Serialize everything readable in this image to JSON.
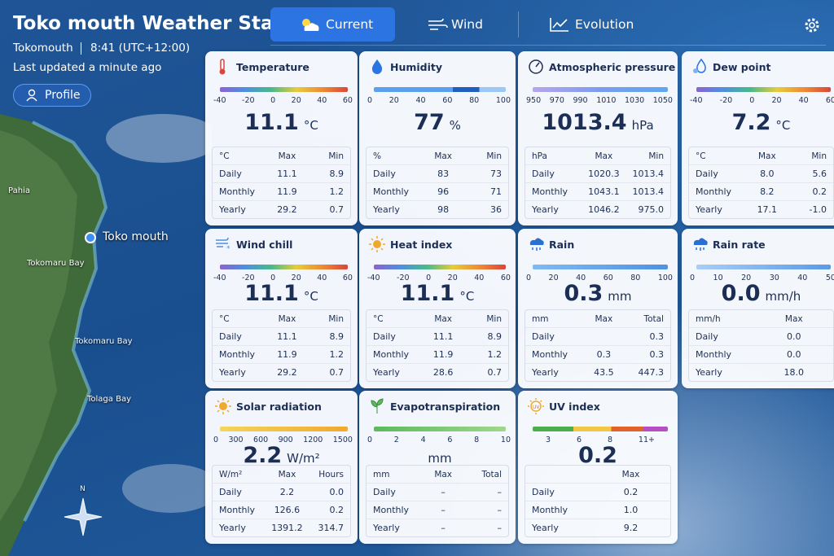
{
  "header": {
    "title": "Toko mouth Weather Sta",
    "location": "Tokomouth",
    "time": "8:41 (UTC+12:00)",
    "updated": "Last updated a minute ago",
    "profile": "Profile"
  },
  "tabs": [
    "Current",
    "Wind",
    "Evolution"
  ],
  "map": {
    "labels": [
      "Pahia",
      "Toko mouth",
      "Tokomaru Bay",
      "Tokomaru Bay",
      "Tolaga Bay"
    ],
    "north": "N"
  },
  "cards": [
    {
      "title": "Temperature",
      "scale": [
        "-40",
        "-20",
        "0",
        "20",
        "40",
        "60"
      ],
      "value": "11.1",
      "unit": "°C",
      "header": [
        "°C",
        "Max",
        "Min"
      ],
      "rows": [
        [
          "Daily",
          "11.1",
          "8.9"
        ],
        [
          "Monthly",
          "11.9",
          "1.2"
        ],
        [
          "Yearly",
          "29.2",
          "0.7"
        ]
      ]
    },
    {
      "title": "Humidity",
      "scale": [
        "0",
        "20",
        "40",
        "60",
        "80",
        "100"
      ],
      "value": "77",
      "unit": "%",
      "header": [
        "%",
        "Max",
        "Min"
      ],
      "rows": [
        [
          "Daily",
          "83",
          "73"
        ],
        [
          "Monthly",
          "96",
          "71"
        ],
        [
          "Yearly",
          "98",
          "36"
        ]
      ]
    },
    {
      "title": "Atmospheric pressure",
      "scale": [
        "950",
        "970",
        "990",
        "1010",
        "1030",
        "1050"
      ],
      "value": "1013.4",
      "unit": "hPa",
      "header": [
        "hPa",
        "Max",
        "Min"
      ],
      "rows": [
        [
          "Daily",
          "1020.3",
          "1013.4"
        ],
        [
          "Monthly",
          "1043.1",
          "1013.4"
        ],
        [
          "Yearly",
          "1046.2",
          "975.0"
        ]
      ]
    },
    {
      "title": "Dew point",
      "scale": [
        "-40",
        "-20",
        "0",
        "20",
        "40",
        "60"
      ],
      "value": "7.2",
      "unit": "°C",
      "header": [
        "°C",
        "Max",
        "Min"
      ],
      "rows": [
        [
          "Daily",
          "8.0",
          "5.6"
        ],
        [
          "Monthly",
          "8.2",
          "0.2"
        ],
        [
          "Yearly",
          "17.1",
          "-1.0"
        ]
      ]
    },
    {
      "title": "Wind chill",
      "scale": [
        "-40",
        "-20",
        "0",
        "20",
        "40",
        "60"
      ],
      "value": "11.1",
      "unit": "°C",
      "header": [
        "°C",
        "Max",
        "Min"
      ],
      "rows": [
        [
          "Daily",
          "11.1",
          "8.9"
        ],
        [
          "Monthly",
          "11.9",
          "1.2"
        ],
        [
          "Yearly",
          "29.2",
          "0.7"
        ]
      ]
    },
    {
      "title": "Heat index",
      "scale": [
        "-40",
        "-20",
        "0",
        "20",
        "40",
        "60"
      ],
      "value": "11.1",
      "unit": "°C",
      "header": [
        "°C",
        "Max",
        "Min"
      ],
      "rows": [
        [
          "Daily",
          "11.1",
          "8.9"
        ],
        [
          "Monthly",
          "11.9",
          "1.2"
        ],
        [
          "Yearly",
          "28.6",
          "0.7"
        ]
      ]
    },
    {
      "title": "Rain",
      "scale": [
        "0",
        "20",
        "40",
        "60",
        "80",
        "100"
      ],
      "value": "0.3",
      "unit": "mm",
      "header": [
        "mm",
        "Max",
        "Total"
      ],
      "rows": [
        [
          "Daily",
          null,
          "0.3"
        ],
        [
          "Monthly",
          "0.3",
          "0.3"
        ],
        [
          "Yearly",
          "43.5",
          "447.3"
        ]
      ]
    },
    {
      "title": "Rain rate",
      "scale": [
        "0",
        "10",
        "20",
        "30",
        "40",
        "50"
      ],
      "value": "0.0",
      "unit": "mm/h",
      "header": [
        "mm/h",
        "Max"
      ],
      "rows": [
        [
          "Daily",
          "0.0"
        ],
        [
          "Monthly",
          "0.0"
        ],
        [
          "Yearly",
          "18.0"
        ]
      ]
    },
    {
      "title": "Solar radiation",
      "scale": [
        "0",
        "300",
        "600",
        "900",
        "1200",
        "1500"
      ],
      "value": "2.2",
      "unit": "W/m²",
      "header": [
        "W/m²",
        "Max",
        "Hours"
      ],
      "rows": [
        [
          "Daily",
          "2.2",
          "0.0"
        ],
        [
          "Monthly",
          "126.6",
          "0.2"
        ],
        [
          "Yearly",
          "1391.2",
          "314.7"
        ]
      ]
    },
    {
      "title": "Evapotranspiration",
      "scale": [
        "0",
        "2",
        "4",
        "6",
        "8",
        "10"
      ],
      "unit": "mm",
      "header": [
        "mm",
        "Max",
        "Total"
      ],
      "rows": [
        [
          "Daily",
          "–",
          "–"
        ],
        [
          "Monthly",
          "–",
          "–"
        ],
        [
          "Yearly",
          "–",
          "–"
        ]
      ]
    },
    {
      "title": "UV index",
      "scale": [
        "3",
        "6",
        "8",
        "11+"
      ],
      "value": "0.2",
      "header": [
        "Max"
      ],
      "rows": [
        [
          "Daily",
          "0.2"
        ],
        [
          "Monthly",
          "1.0"
        ],
        [
          "Yearly",
          "9.2"
        ]
      ]
    }
  ]
}
